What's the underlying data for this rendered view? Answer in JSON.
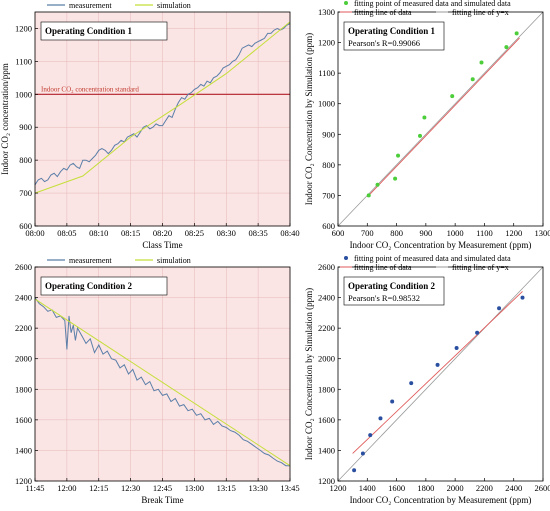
{
  "chart_data": [
    {
      "id": "p1",
      "type": "line",
      "xlabel": "Class Time",
      "ylabel": "Indoor CO₂ concentration/ppm",
      "annotation_title": "Operating Condition 1",
      "reference_label": "Indoor CO₂ concentration standard",
      "reference_value": 1000,
      "ylim": [
        600,
        1250
      ],
      "yticks": [
        600,
        700,
        800,
        900,
        1000,
        1100,
        1200
      ],
      "xlim": [
        0,
        40
      ],
      "xticks": [
        0,
        5,
        10,
        15,
        20,
        25,
        30,
        35,
        40
      ],
      "xtick_labels": [
        "08:00",
        "08:05",
        "08:10",
        "08:15",
        "08:20",
        "08:25",
        "08:30",
        "08:35",
        "08:40"
      ],
      "background": "#fbe4e4",
      "series": [
        {
          "name": "measurement",
          "color": "#5b7fa8",
          "x": [
            0,
            0.5,
            1,
            1.5,
            2,
            2.5,
            3,
            3.5,
            4,
            4.5,
            5,
            5.5,
            6,
            6.5,
            7,
            7.5,
            8,
            8.5,
            9,
            9.5,
            10,
            10.5,
            11,
            11.5,
            12,
            12.5,
            13,
            13.5,
            14,
            14.5,
            15,
            15.5,
            16,
            16.5,
            17,
            17.5,
            18,
            18.5,
            19,
            19.5,
            20,
            20.5,
            21,
            21.5,
            22,
            22.5,
            23,
            23.5,
            24,
            24.5,
            25,
            25.5,
            26,
            26.5,
            27,
            27.5,
            28,
            28.5,
            29,
            29.5,
            30,
            30.5,
            31,
            31.5,
            32,
            32.5,
            33,
            33.5,
            34,
            34.5,
            35,
            35.5,
            36,
            36.5,
            37,
            37.5,
            38,
            38.5,
            39,
            39.5,
            40
          ],
          "y": [
            725,
            740,
            745,
            735,
            740,
            755,
            760,
            750,
            765,
            775,
            770,
            785,
            790,
            780,
            775,
            800,
            800,
            795,
            805,
            815,
            830,
            835,
            830,
            820,
            830,
            845,
            850,
            860,
            855,
            870,
            875,
            880,
            870,
            885,
            900,
            905,
            895,
            900,
            910,
            905,
            905,
            920,
            935,
            930,
            955,
            975,
            990,
            985,
            1000,
            1005,
            1015,
            1020,
            1030,
            1025,
            1040,
            1035,
            1050,
            1055,
            1065,
            1080,
            1085,
            1090,
            1100,
            1105,
            1120,
            1140,
            1145,
            1150,
            1145,
            1155,
            1160,
            1165,
            1170,
            1185,
            1185,
            1195,
            1200,
            1195,
            1200,
            1210,
            1215
          ]
        },
        {
          "name": "simulation",
          "color": "#c5df3a",
          "x": [
            0,
            7.5,
            15,
            22.5,
            30,
            40
          ],
          "y": [
            700,
            752,
            870,
            965,
            1063,
            1220
          ]
        }
      ]
    },
    {
      "id": "p2",
      "type": "scatter",
      "xlabel": "Indoor CO₂ Concentration by Measurement (ppm)",
      "ylabel": "Indoor CO₂ Concentration by Simulation (ppm)",
      "annotation_title": "Operating Condition 1",
      "annotation_text": "Pearson's R=0.99066",
      "xlim": [
        600,
        1300
      ],
      "ylim": [
        600,
        1300
      ],
      "xticks": [
        600,
        700,
        800,
        900,
        1000,
        1100,
        1200,
        1300
      ],
      "yticks": [
        600,
        700,
        800,
        900,
        1000,
        1100,
        1200,
        1300
      ],
      "legend": [
        "fitting point of measured data and simulated data",
        "fitting line of data",
        "fitting line of y=x"
      ],
      "point_color": "#4ccd3a",
      "fit_color": "#e05a5a",
      "identity_color": "#9a9a9a",
      "points": {
        "x": [
          705,
          735,
          795,
          805,
          880,
          895,
          990,
          1060,
          1090,
          1175,
          1210
        ],
        "y": [
          700,
          735,
          755,
          830,
          895,
          955,
          1025,
          1080,
          1135,
          1185,
          1230
        ]
      },
      "fit_line": {
        "x": [
          700,
          1220
        ],
        "y": [
          695,
          1215
        ]
      }
    },
    {
      "id": "p3",
      "type": "line",
      "xlabel": "Break Time",
      "ylabel": "",
      "annotation_title": "Operating Condition 2",
      "ylim": [
        1200,
        2600
      ],
      "yticks": [
        1200,
        1400,
        1600,
        1800,
        2000,
        2200,
        2400,
        2600
      ],
      "xlim": [
        0,
        120
      ],
      "xticks": [
        0,
        15,
        30,
        45,
        60,
        75,
        90,
        105,
        120
      ],
      "xtick_labels": [
        "11:45",
        "12:00",
        "12:15",
        "12:30",
        "12:45",
        "13:00",
        "13:15",
        "13:30",
        "13:45"
      ],
      "background": "#fbe4e4",
      "series": [
        {
          "name": "measurement",
          "color": "#5b7fa8",
          "x": [
            0,
            2,
            4,
            6,
            8,
            10,
            12,
            14,
            15,
            16,
            17,
            18,
            19,
            20,
            22,
            24,
            26,
            28,
            30,
            32,
            34,
            36,
            38,
            40,
            42,
            44,
            46,
            48,
            50,
            52,
            54,
            56,
            58,
            60,
            62,
            64,
            66,
            68,
            70,
            72,
            74,
            76,
            78,
            80,
            82,
            84,
            86,
            88,
            90,
            92,
            94,
            96,
            98,
            100,
            102,
            104,
            106,
            108,
            110,
            112,
            114,
            116,
            118,
            120
          ],
          "y": [
            2400,
            2360,
            2340,
            2310,
            2320,
            2270,
            2280,
            2250,
            2060,
            2280,
            2170,
            2220,
            2120,
            2200,
            2150,
            2100,
            2130,
            2040,
            2090,
            2030,
            2050,
            2000,
            1990,
            1940,
            1960,
            1900,
            1930,
            1860,
            1880,
            1830,
            1850,
            1790,
            1800,
            1760,
            1770,
            1720,
            1740,
            1690,
            1700,
            1660,
            1670,
            1630,
            1640,
            1600,
            1610,
            1570,
            1590,
            1560,
            1550,
            1530,
            1520,
            1500,
            1470,
            1460,
            1440,
            1420,
            1400,
            1380,
            1370,
            1350,
            1330,
            1320,
            1300,
            1300
          ]
        },
        {
          "name": "simulation",
          "color": "#c5df3a",
          "x": [
            0,
            120
          ],
          "y": [
            2390,
            1300
          ]
        }
      ]
    },
    {
      "id": "p4",
      "type": "scatter",
      "xlabel": "Indoor CO₂ Concentration by Measurement (ppm)",
      "ylabel": "Indoor CO₂ Concentration by Simulation (ppm)",
      "annotation_title": "Operating Condition 2",
      "annotation_text": "Pearson's R=0.98532",
      "xlim": [
        1200,
        2600
      ],
      "ylim": [
        1200,
        2600
      ],
      "xticks": [
        1200,
        1400,
        1600,
        1800,
        2000,
        2200,
        2400,
        2600
      ],
      "yticks": [
        1200,
        1400,
        1600,
        1800,
        2000,
        2200,
        2400,
        2600
      ],
      "legend": [
        "fitting point of measured data and simulated data",
        "fitting line of data",
        "fitting line of y=x"
      ],
      "point_color": "#2a4fa0",
      "fit_color": "#e05a5a",
      "identity_color": "#9a9a9a",
      "points": {
        "x": [
          1310,
          1370,
          1420,
          1490,
          1570,
          1700,
          1880,
          2010,
          2150,
          2300,
          2460
        ],
        "y": [
          1270,
          1380,
          1500,
          1610,
          1720,
          1840,
          1960,
          2070,
          2170,
          2330,
          2400
        ]
      },
      "fit_line": {
        "x": [
          1300,
          2460
        ],
        "y": [
          1380,
          2440
        ]
      }
    }
  ]
}
